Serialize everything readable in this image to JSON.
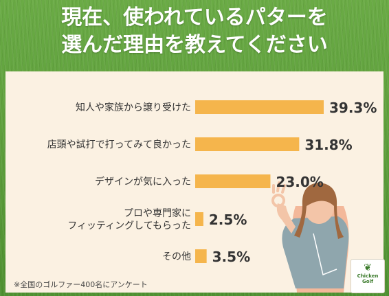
{
  "title_line1": "現在、使われているパターを",
  "title_line2": "選んだ理由を教えてください",
  "note": "※全国のゴルファー400名にアンケート",
  "logo_text": "Chicken Golf",
  "chart_data": {
    "type": "bar",
    "orientation": "horizontal",
    "categories": [
      [
        "知人や家族から譲り受けた"
      ],
      [
        "店頭や試打で打ってみて良かった"
      ],
      [
        "デザインが気に入った"
      ],
      [
        "プロや専門家に",
        "フィッティングしてもらった"
      ],
      [
        "その他"
      ]
    ],
    "values": [
      39.3,
      31.8,
      23.0,
      2.5,
      3.5
    ],
    "value_labels": [
      "39.3%",
      "31.8%",
      "23.0%",
      "2.5%",
      "3.5%"
    ],
    "bar_color": "#f5b54c",
    "grid": false
  }
}
